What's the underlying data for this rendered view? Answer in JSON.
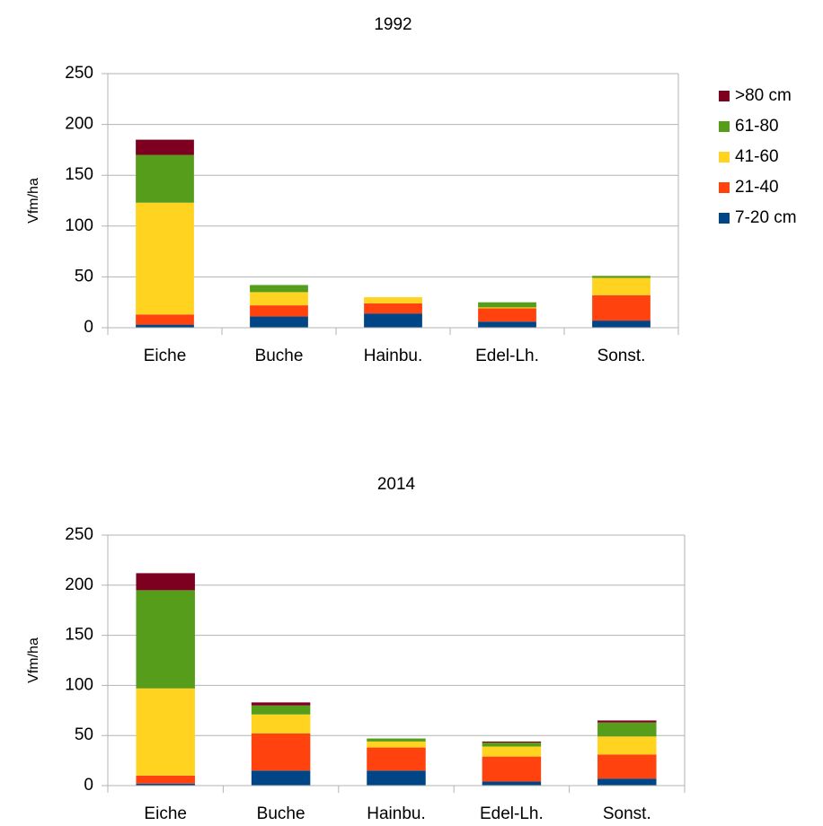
{
  "chart_data": [
    {
      "type": "stacked-bar",
      "title": "1992",
      "y_label": "Vfm/ha",
      "categories": [
        "Eiche",
        "Buche",
        "Hainbu.",
        "Edel-Lh.",
        "Sonst."
      ],
      "series": [
        {
          "name": "7-20 cm",
          "color": "#004586",
          "values": [
            3,
            11,
            14,
            6,
            7
          ]
        },
        {
          "name": "21-40",
          "color": "#ff420e",
          "values": [
            10,
            11,
            10,
            13,
            25
          ]
        },
        {
          "name": "41-60",
          "color": "#ffd320",
          "values": [
            110,
            13,
            6,
            1,
            17
          ]
        },
        {
          "name": "61-80",
          "color": "#579d1c",
          "values": [
            47,
            7,
            0,
            5,
            2
          ]
        },
        {
          "name": ">80 cm",
          "color": "#7e0021",
          "values": [
            15,
            0,
            0,
            0,
            0
          ]
        }
      ],
      "ylim": [
        0,
        250
      ],
      "yticks": [
        0,
        50,
        100,
        150,
        200,
        250
      ],
      "grid": true,
      "legend": "right"
    },
    {
      "type": "stacked-bar",
      "title": "2014",
      "y_label": "Vfm/ha",
      "categories": [
        "Eiche",
        "Buche",
        "Hainbu.",
        "Edel-Lh.",
        "Sonst."
      ],
      "series": [
        {
          "color": "#004586",
          "values": [
            2,
            15,
            15,
            4,
            7
          ]
        },
        {
          "color": "#ff420e",
          "values": [
            8,
            37,
            23,
            25,
            24
          ]
        },
        {
          "color": "#ffd320",
          "values": [
            87,
            19,
            6,
            10,
            18
          ]
        },
        {
          "color": "#579d1c",
          "values": [
            98,
            9,
            3,
            4,
            14
          ]
        },
        {
          "color": "#7e0021",
          "values": [
            17,
            3,
            0,
            1,
            2
          ]
        }
      ],
      "ylim": [
        0,
        250
      ],
      "yticks": [
        0,
        50,
        100,
        150,
        200,
        250
      ],
      "grid": true
    }
  ]
}
